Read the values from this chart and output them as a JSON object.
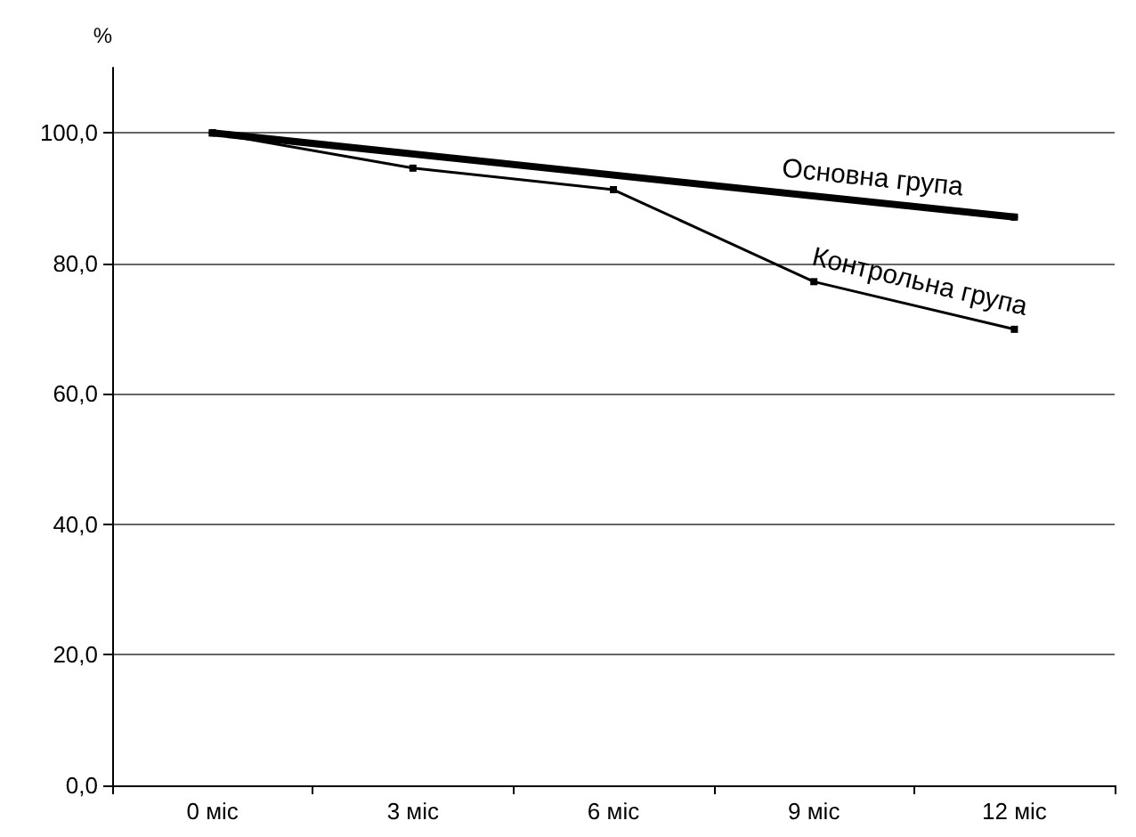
{
  "chart_data": {
    "type": "line",
    "ylabel": "%",
    "categories": [
      "0 міс",
      "3 міс",
      "6 міс",
      "9 міс",
      "12 міс"
    ],
    "series": [
      {
        "name": "Основна група",
        "color": "#000000",
        "values": [
          100,
          null,
          null,
          null,
          87.1
        ]
      },
      {
        "name": "Контрольна група",
        "color": "#000000",
        "values": [
          100,
          94.6,
          91.3,
          77.2,
          69.9
        ],
        "marker": "square"
      }
    ],
    "ylim": [
      0,
      110
    ],
    "yticks": [
      {
        "value": 0,
        "label": "0,0"
      },
      {
        "value": 20,
        "label": "20,0"
      },
      {
        "value": 40,
        "label": "40,0"
      },
      {
        "value": 60,
        "label": "60,0"
      },
      {
        "value": 80,
        "label": "80,0"
      },
      {
        "value": 100,
        "label": "100,0"
      }
    ],
    "grid": "y",
    "line_style": "solid",
    "marker": "square"
  }
}
